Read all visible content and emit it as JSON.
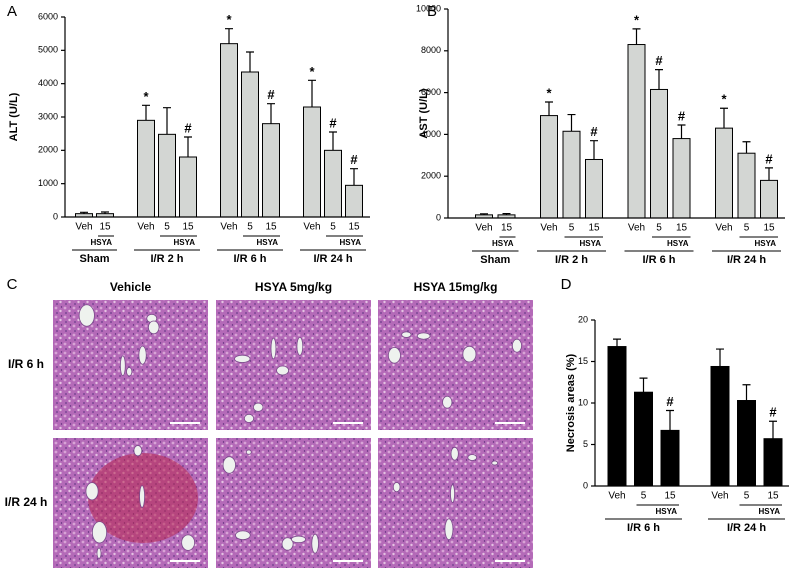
{
  "chart_data": [
    {
      "type": "bar",
      "panel": "A",
      "ylabel": "ALT (U/L)",
      "color": "#d3d6d3",
      "ylim": [
        0,
        6000
      ],
      "yticks": [
        0,
        1000,
        2000,
        3000,
        4000,
        5000,
        6000
      ],
      "groups": [
        {
          "name": "Sham",
          "subgroup_label": "HSYA",
          "categories": [
            "Veh",
            "15"
          ],
          "values": [
            100,
            100
          ],
          "errors": [
            40,
            50
          ],
          "markers": [
            null,
            null
          ]
        },
        {
          "name": "I/R 2 h",
          "subgroup_label": "HSYA",
          "categories": [
            "Veh",
            "5",
            "15"
          ],
          "values": [
            2900,
            2480,
            1800
          ],
          "errors": [
            450,
            800,
            600
          ],
          "markers": [
            "*",
            null,
            "#"
          ]
        },
        {
          "name": "I/R 6 h",
          "subgroup_label": "HSYA",
          "categories": [
            "Veh",
            "5",
            "15"
          ],
          "values": [
            5200,
            4350,
            2800
          ],
          "errors": [
            450,
            600,
            600
          ],
          "markers": [
            "*",
            null,
            "#"
          ]
        },
        {
          "name": "I/R 24 h",
          "subgroup_label": "HSYA",
          "categories": [
            "Veh",
            "5",
            "15"
          ],
          "values": [
            3300,
            2000,
            950
          ],
          "errors": [
            800,
            550,
            500
          ],
          "markers": [
            "*",
            "#",
            "#"
          ]
        }
      ]
    },
    {
      "type": "bar",
      "panel": "B",
      "ylabel": "AST (U/L)",
      "color": "#d3d6d3",
      "ylim": [
        0,
        10000
      ],
      "yticks": [
        0,
        2000,
        4000,
        6000,
        8000,
        10000
      ],
      "groups": [
        {
          "name": "Sham",
          "subgroup_label": "HSYA",
          "categories": [
            "Veh",
            "15"
          ],
          "values": [
            150,
            150
          ],
          "errors": [
            50,
            60
          ],
          "markers": [
            null,
            null
          ]
        },
        {
          "name": "I/R 2 h",
          "subgroup_label": "HSYA",
          "categories": [
            "Veh",
            "5",
            "15"
          ],
          "values": [
            4900,
            4150,
            2800
          ],
          "errors": [
            650,
            800,
            900
          ],
          "markers": [
            "*",
            null,
            "#"
          ]
        },
        {
          "name": "I/R 6 h",
          "subgroup_label": "HSYA",
          "categories": [
            "Veh",
            "5",
            "15"
          ],
          "values": [
            8300,
            6150,
            3800
          ],
          "errors": [
            750,
            950,
            650
          ],
          "markers": [
            "*",
            "#",
            "#"
          ]
        },
        {
          "name": "I/R 24 h",
          "subgroup_label": "HSYA",
          "categories": [
            "Veh",
            "5",
            "15"
          ],
          "values": [
            4300,
            3100,
            1800
          ],
          "errors": [
            950,
            550,
            600
          ],
          "markers": [
            "*",
            null,
            "#"
          ]
        }
      ]
    },
    {
      "type": "bar",
      "panel": "D",
      "ylabel": "Necrosis areas (%)",
      "color": "#000000",
      "ylim": [
        0,
        20
      ],
      "yticks": [
        0,
        5,
        10,
        15,
        20
      ],
      "groups": [
        {
          "name": "I/R 6 h",
          "subgroup_label": "HSYA",
          "categories": [
            "Veh",
            "5",
            "15"
          ],
          "values": [
            16.8,
            11.3,
            6.7
          ],
          "errors": [
            0.9,
            1.7,
            2.4
          ],
          "markers": [
            null,
            null,
            "#"
          ]
        },
        {
          "name": "I/R 24 h",
          "subgroup_label": "HSYA",
          "categories": [
            "Veh",
            "5",
            "15"
          ],
          "values": [
            14.4,
            10.3,
            5.7
          ],
          "errors": [
            2.1,
            1.9,
            2.1
          ],
          "markers": [
            null,
            null,
            "#"
          ]
        }
      ]
    }
  ],
  "histology": {
    "panel": "C",
    "columns": [
      "Vehicle",
      "HSYA 5mg/kg",
      "HSYA 15mg/kg"
    ],
    "rows": [
      "I/R 6 h",
      "I/R 24 h"
    ]
  }
}
